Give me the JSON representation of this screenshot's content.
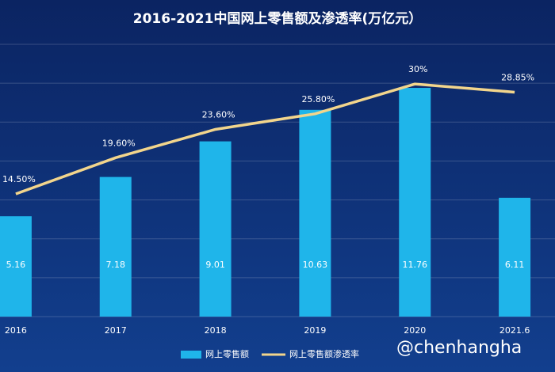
{
  "chart_data": {
    "type": "bar-line",
    "title": "2016-2021中国网上零售额及渗透率(万亿元）",
    "categories": [
      "2016",
      "2017",
      "2018",
      "2019",
      "2020",
      "2021.6"
    ],
    "series": [
      {
        "name": "网上零售额",
        "type": "bar",
        "color": "#1fb5ea",
        "values": [
          5.16,
          7.18,
          9.01,
          10.63,
          11.76,
          6.11
        ]
      },
      {
        "name": "网上零售额渗透率",
        "type": "line",
        "axis": "y2",
        "color": "#f2d58c",
        "values": [
          14.5,
          19.6,
          23.6,
          25.8,
          30,
          28.85
        ],
        "value_labels": [
          "14.50%",
          "19.60%",
          "23.60%",
          "25.80%",
          "30%",
          "28.85%"
        ]
      }
    ],
    "ylim": [
      0,
      14
    ],
    "yticks": [
      0,
      2,
      4,
      6,
      8,
      10,
      12,
      14
    ],
    "grid": true,
    "y2lim": [
      -2.8,
      35.6
    ],
    "legend": "bottom"
  },
  "watermark": "@chenhangha"
}
